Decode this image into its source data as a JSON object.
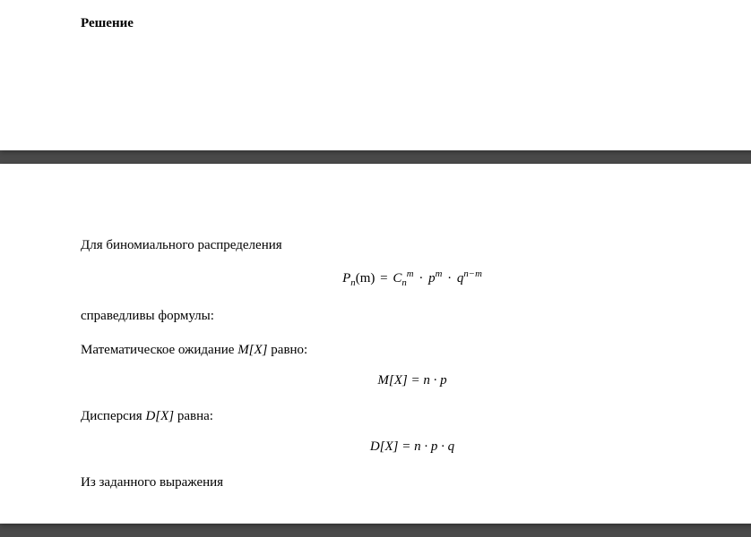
{
  "top": {
    "heading": "Решение"
  },
  "bottom": {
    "p1": "Для биномиального распределения",
    "f1": {
      "lhs_P": "P",
      "lhs_sub_n": "n",
      "lhs_arg_m": "(m)",
      "eq": " = ",
      "C": "C",
      "C_sub": "n",
      "C_sup": "m",
      "dot1": " · ",
      "p": "p",
      "p_sup": "m",
      "dot2": " · ",
      "q": "q",
      "q_sup": "n−m"
    },
    "p2": "справедливы формулы:",
    "p3_a": "Математическое ожидание ",
    "p3_mx": "M[X]",
    "p3_b": " равно:",
    "f2": "M[X] = n · p",
    "p4_a": "Дисперсия ",
    "p4_dx": "D[X]",
    "p4_b": " равна:",
    "f3": "D[X] = n · p · q",
    "p5": "Из заданного выражения"
  }
}
